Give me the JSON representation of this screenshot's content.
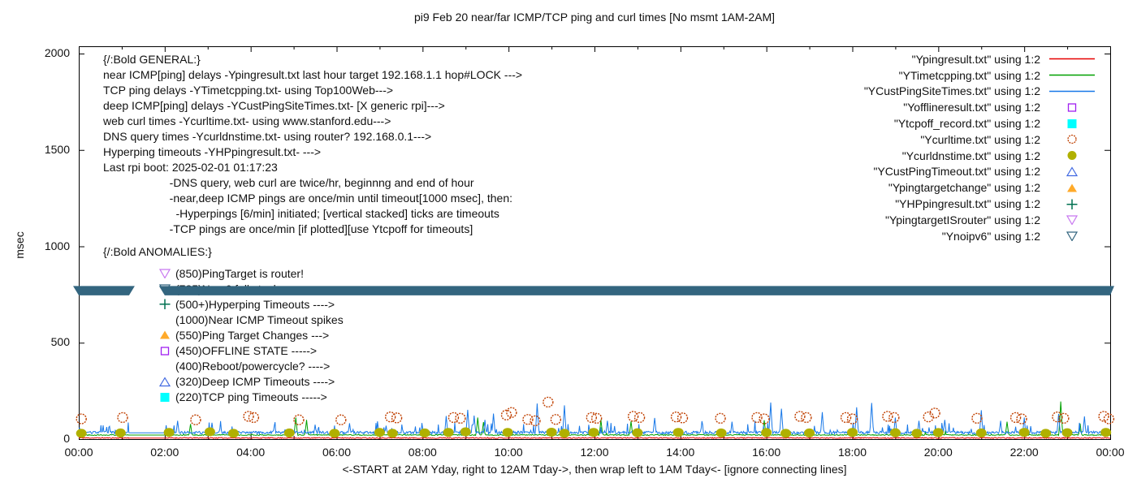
{
  "title": "pi9 Feb 20  near/far ICMP/TCP ping and curl times [No msmt 1AM-2AM]",
  "colors": {
    "near_icmp_red": "#e60000",
    "tcp_ping_green": "#00a000",
    "deep_icmp_blue": "#1878e8",
    "offline_magenta": "#a020f0",
    "tcpoff_cyan": "#00ffff",
    "curl_orange": "#c04000",
    "dns_olive": "#b0b000",
    "custping_timeout_blue": "#4169e1",
    "pingtargetchange_orange": "#ffaa2a",
    "hyperping_green": "#007050",
    "targetisrouter_violet": "#c878f0",
    "noipv6_slate": "#33657f",
    "axis_black": "#000000"
  },
  "chart_data": {
    "type": "line",
    "title": "pi9 Feb 20  near/far ICMP/TCP ping and curl times [No msmt 1AM-2AM]",
    "xlabel": "<-START at 2AM Yday, right to 12AM Tday->, then wrap left to 1AM Tday<- [ignore connecting lines]",
    "ylabel": "msec",
    "x_ticks": [
      "00:00",
      "02:00",
      "04:00",
      "06:00",
      "08:00",
      "10:00",
      "12:00",
      "14:00",
      "16:00",
      "18:00",
      "20:00",
      "22:00",
      "00:00"
    ],
    "x_range_hours": [
      0,
      24
    ],
    "y_ticks": [
      0,
      500,
      1000,
      1500,
      2000
    ],
    "y_range": [
      0,
      2000
    ],
    "grid": false,
    "legend_position": "top-right-inside",
    "no_measurement_gap_hours": [
      1.17,
      2.0
    ],
    "series": [
      {
        "name": "Ypingresult.txt",
        "type": "line",
        "color": "#e60000",
        "base": 3.5,
        "noise": 5,
        "spike_prob": 0,
        "spike_amp": 0,
        "seed": 11,
        "spikes": []
      },
      {
        "name": "YTimetcpping.txt",
        "type": "line",
        "color": "#00a000",
        "base": 19,
        "noise": 5,
        "spike_prob": 0.004,
        "spike_amp": 25,
        "seed": 22,
        "spikes": [
          [
            2.6,
            78
          ],
          [
            5.05,
            112
          ],
          [
            5.3,
            100
          ],
          [
            9.28,
            112
          ],
          [
            9.42,
            88
          ],
          [
            12.15,
            100
          ],
          [
            12.85,
            92
          ],
          [
            15.95,
            98
          ],
          [
            21.6,
            90
          ],
          [
            22.85,
            195
          ],
          [
            23.3,
            80
          ]
        ]
      },
      {
        "name": "YCustPingSiteTimes.txt",
        "type": "line",
        "color": "#1878e8",
        "base": 27,
        "noise": 14,
        "spike_prob": 0.07,
        "spike_amp": 55,
        "seed": 33,
        "spikes": [
          [
            2.3,
            95
          ],
          [
            3.1,
            85
          ],
          [
            4.55,
            70
          ],
          [
            5.5,
            75
          ],
          [
            6.3,
            82
          ],
          [
            7.15,
            70
          ],
          [
            8.55,
            120
          ],
          [
            9.05,
            152
          ],
          [
            9.2,
            122
          ],
          [
            9.45,
            100
          ],
          [
            9.65,
            132
          ],
          [
            10.67,
            185
          ],
          [
            11.3,
            175
          ],
          [
            12.3,
            95
          ],
          [
            13.4,
            110
          ],
          [
            14.5,
            85
          ],
          [
            15.2,
            90
          ],
          [
            16.1,
            190
          ],
          [
            16.35,
            158
          ],
          [
            17.3,
            140
          ],
          [
            18.1,
            165
          ],
          [
            18.45,
            188
          ],
          [
            19.0,
            112
          ],
          [
            19.55,
            95
          ],
          [
            20.15,
            100
          ],
          [
            21.0,
            150
          ],
          [
            21.45,
            95
          ],
          [
            22.0,
            112
          ],
          [
            22.8,
            130
          ],
          [
            23.4,
            118
          ]
        ]
      },
      {
        "name": "Ycurltime.txt",
        "type": "scatter",
        "marker": "circle-open",
        "color": "#c04000",
        "points": [
          [
            0.06,
            105
          ],
          [
            1.02,
            112
          ],
          [
            2.72,
            100
          ],
          [
            3.95,
            118
          ],
          [
            4.07,
            112
          ],
          [
            5.12,
            100
          ],
          [
            6.1,
            100
          ],
          [
            7.25,
            115
          ],
          [
            7.4,
            110
          ],
          [
            8.72,
            112
          ],
          [
            8.88,
            108
          ],
          [
            9.95,
            125
          ],
          [
            10.07,
            138
          ],
          [
            10.45,
            102
          ],
          [
            10.62,
            95
          ],
          [
            10.92,
            192
          ],
          [
            11.1,
            102
          ],
          [
            11.93,
            112
          ],
          [
            12.05,
            108
          ],
          [
            12.9,
            118
          ],
          [
            13.05,
            112
          ],
          [
            13.9,
            115
          ],
          [
            14.05,
            110
          ],
          [
            14.93,
            108
          ],
          [
            15.78,
            112
          ],
          [
            15.95,
            105
          ],
          [
            16.78,
            118
          ],
          [
            16.93,
            112
          ],
          [
            17.85,
            112
          ],
          [
            18.0,
            105
          ],
          [
            18.82,
            118
          ],
          [
            18.97,
            112
          ],
          [
            19.77,
            115
          ],
          [
            19.92,
            135
          ],
          [
            20.9,
            108
          ],
          [
            21.8,
            112
          ],
          [
            21.94,
            105
          ],
          [
            22.77,
            115
          ],
          [
            22.92,
            108
          ],
          [
            23.85,
            118
          ],
          [
            23.97,
            105
          ]
        ]
      },
      {
        "name": "Ycurldnstime.txt",
        "type": "scatter",
        "marker": "circle-filled",
        "color": "#b0b000",
        "points": [
          [
            0.06,
            30
          ],
          [
            0.97,
            32
          ],
          [
            2.1,
            35
          ],
          [
            3.05,
            38
          ],
          [
            3.6,
            30
          ],
          [
            4.9,
            32
          ],
          [
            5.95,
            30
          ],
          [
            7.0,
            35
          ],
          [
            7.3,
            30
          ],
          [
            8.05,
            32
          ],
          [
            8.6,
            35
          ],
          [
            9.0,
            38
          ],
          [
            9.98,
            35
          ],
          [
            11.0,
            36
          ],
          [
            11.3,
            30
          ],
          [
            11.98,
            35
          ],
          [
            13.0,
            33
          ],
          [
            13.95,
            35
          ],
          [
            14.95,
            32
          ],
          [
            16.0,
            34
          ],
          [
            16.45,
            30
          ],
          [
            17.0,
            32
          ],
          [
            18.0,
            35
          ],
          [
            19.0,
            33
          ],
          [
            19.5,
            30
          ],
          [
            20.0,
            34
          ],
          [
            21.0,
            32
          ],
          [
            22.0,
            35
          ],
          [
            22.5,
            30
          ],
          [
            23.0,
            33
          ],
          [
            23.9,
            35
          ]
        ]
      },
      {
        "name": "Ynoipv6",
        "type": "band",
        "marker": "triangle-down-open",
        "color": "#33657f",
        "y": 770,
        "marker_halfwidth_px": 7,
        "marker_height_px": 11.5,
        "segments_hours": [
          [
            0,
            1.17
          ],
          [
            2.0,
            24
          ]
        ]
      }
    ]
  },
  "legend": {
    "entries": [
      {
        "label": "\"Ypingresult.txt\" using 1:2",
        "sample": "line",
        "color": "#e60000"
      },
      {
        "label": "\"YTimetcpping.txt\" using 1:2",
        "sample": "line",
        "color": "#00a000"
      },
      {
        "label": "\"YCustPingSiteTimes.txt\" using 1:2",
        "sample": "line",
        "color": "#1878e8"
      },
      {
        "label": "\"Yofflineresult.txt\" using 1:2",
        "sample": "square-open",
        "color": "#a020f0"
      },
      {
        "label": "\"Ytcpoff_record.txt\" using 1:2",
        "sample": "square-filled",
        "color": "#00ffff"
      },
      {
        "label": "\"Ycurltime.txt\" using 1:2",
        "sample": "circle-open",
        "color": "#c04000"
      },
      {
        "label": "\"Ycurldnstime.txt\" using 1:2",
        "sample": "circle-filled",
        "color": "#b0b000"
      },
      {
        "label": "\"YCustPingTimeout.txt\" using 1:2",
        "sample": "triangle-up-open",
        "color": "#4169e1"
      },
      {
        "label": "\"Ypingtargetchange\" using 1:2",
        "sample": "triangle-up-filled",
        "color": "#ffaa2a"
      },
      {
        "label": "\"YHPpingresult.txt\" using 1:2",
        "sample": "plus",
        "color": "#007050"
      },
      {
        "label": "\"YpingtargetISrouter\" using 1:2",
        "sample": "triangle-down-open",
        "color": "#c878f0"
      },
      {
        "label": "\"Ynoipv6\" using 1:2",
        "sample": "triangle-down-open",
        "color": "#33657f"
      }
    ]
  },
  "annotations": {
    "general_lines": [
      "{/:Bold GENERAL:}",
      "near ICMP[ping] delays -Ypingresult.txt last hour target 192.168.1.1 hop#LOCK --->",
      "TCP ping delays -YTimetcpping.txt- using Top100Web--->",
      "deep ICMP[ping] delays -YCustPingSiteTimes.txt- [X generic rpi]--->",
      "web curl times -Ycurltime.txt- using www.stanford.edu--->",
      "DNS query times -Ycurldnstime.txt- using router? 192.168.0.1--->",
      "Hyperping timeouts -YHPpingresult.txt- --->",
      "Last rpi boot: 2025-02-01 01:17:23",
      "                     -DNS query, web curl are twice/hr, beginnng and end of hour",
      "                     -near,deep ICMP pings are once/min until timeout[1000 msec], then:",
      "                       -Hyperpings [6/min] initiated; [vertical stacked] ticks are timeouts",
      "                     -TCP pings are once/min [if plotted][use Ytcpoff for timeouts]"
    ],
    "anomalies_header": "{/:Bold ANOMALIES:}",
    "anomalies": [
      {
        "marker": "triangle-down-open",
        "color": "#c878f0",
        "text": "(850)PingTarget is router!"
      },
      {
        "marker": "triangle-down-open",
        "color": "#33657f",
        "text": "(785)No v6 full stack --->"
      },
      {
        "marker": "plus",
        "color": "#007050",
        "text": "(500+)Hyperping Timeouts ---->"
      },
      {
        "marker": null,
        "color": null,
        "text": "(1000)Near ICMP Timeout spikes"
      },
      {
        "marker": "triangle-up-filled",
        "color": "#ffaa2a",
        "text": "(550)Ping Target Changes --->"
      },
      {
        "marker": "square-open",
        "color": "#a020f0",
        "text": "(450)OFFLINE STATE ----->"
      },
      {
        "marker": null,
        "color": null,
        "text": "(400)Reboot/powercycle? ---->"
      },
      {
        "marker": "triangle-up-open",
        "color": "#4169e1",
        "text": "(320)Deep ICMP Timeouts ---->"
      },
      {
        "marker": "square-filled",
        "color": "#00ffff",
        "text": "(220)TCP ping Timeouts ----->"
      }
    ]
  }
}
